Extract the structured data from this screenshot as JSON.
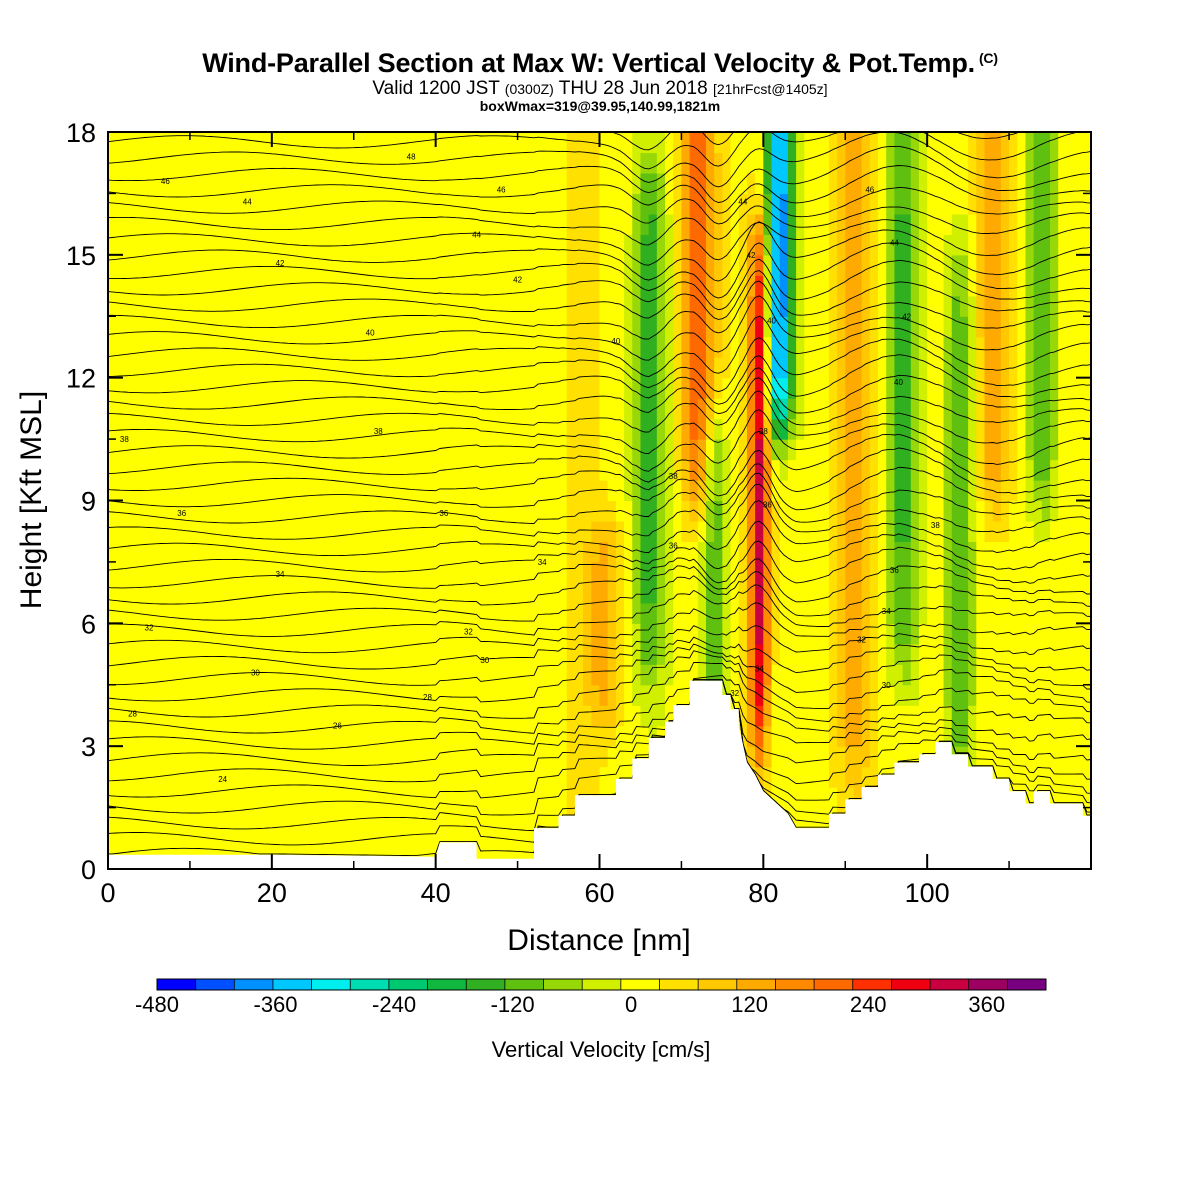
{
  "title": "Wind-Parallel Section at Max W: Vertical Velocity & Pot.Temp.",
  "copyright": "(C)",
  "subtitle_prefix": "Valid 1200 JST",
  "subtitle_utc": "(0300Z)",
  "subtitle_date": "THU 28 Jun 2018",
  "subtitle_fcst": "[21hrFcst@1405z]",
  "subsubtitle": "boxWmax=319@39.95,140.99,1821m",
  "chart_data": {
    "type": "heatmap",
    "title": "Wind-Parallel Section at Max W: Vertical Velocity & Pot.Temp.",
    "xlabel": "Distance [nm]",
    "ylabel": "Height [Kft MSL]",
    "xlim": [
      0,
      120
    ],
    "ylim": [
      0,
      18
    ],
    "x_ticks": [
      "0",
      "20",
      "40",
      "60",
      "80",
      "100"
    ],
    "y_ticks": [
      "0",
      "3",
      "6",
      "9",
      "12",
      "15",
      "18"
    ],
    "grid": false,
    "colorbar": {
      "label": "Vertical Velocity [cm/s]",
      "min": -480,
      "max": 420,
      "step": 40,
      "tick_labels": [
        "-480",
        "-360",
        "-240",
        "-120",
        "0",
        "120",
        "240",
        "360"
      ],
      "colors": [
        "#0000ff",
        "#0050ff",
        "#0090ff",
        "#00c8ff",
        "#00eeee",
        "#00ddb0",
        "#00c870",
        "#10b840",
        "#30b020",
        "#60c010",
        "#98d808",
        "#d0f000",
        "#ffff00",
        "#ffe000",
        "#ffc800",
        "#ffaa00",
        "#ff8a00",
        "#ff6a00",
        "#ff3000",
        "#ee0010",
        "#c80040",
        "#9c0060",
        "#780080"
      ]
    },
    "terrain": [
      [
        0,
        0.35
      ],
      [
        20,
        0.35
      ],
      [
        40,
        0.3
      ],
      [
        40.5,
        0.65
      ],
      [
        45,
        0.65
      ],
      [
        45,
        0.25
      ],
      [
        52,
        0.25
      ],
      [
        52,
        1.0
      ],
      [
        55,
        1.0
      ],
      [
        55,
        1.3
      ],
      [
        57,
        1.3
      ],
      [
        57,
        1.8
      ],
      [
        62,
        1.8
      ],
      [
        62,
        2.2
      ],
      [
        64,
        2.2
      ],
      [
        64,
        2.7
      ],
      [
        66,
        2.7
      ],
      [
        66,
        3.2
      ],
      [
        68,
        3.2
      ],
      [
        68,
        3.6
      ],
      [
        69,
        3.6
      ],
      [
        69,
        4.0
      ],
      [
        71,
        4.0
      ],
      [
        71,
        4.6
      ],
      [
        75,
        4.6
      ],
      [
        75,
        4.25
      ],
      [
        76,
        4.25
      ],
      [
        76,
        3.9
      ],
      [
        77,
        3.9
      ],
      [
        77,
        3.5
      ],
      [
        78,
        2.6
      ],
      [
        79,
        2.3
      ],
      [
        80,
        1.9
      ],
      [
        83,
        1.35
      ],
      [
        84,
        1.0
      ],
      [
        88,
        1.0
      ],
      [
        88,
        1.35
      ],
      [
        90,
        1.35
      ],
      [
        90,
        1.7
      ],
      [
        92,
        1.7
      ],
      [
        92,
        2.0
      ],
      [
        94,
        2.0
      ],
      [
        94,
        2.3
      ],
      [
        96,
        2.3
      ],
      [
        96,
        2.6
      ],
      [
        99,
        2.6
      ],
      [
        99,
        2.8
      ],
      [
        101,
        2.8
      ],
      [
        101,
        3.1
      ],
      [
        103,
        3.1
      ],
      [
        103,
        2.8
      ],
      [
        105,
        2.8
      ],
      [
        105,
        2.5
      ],
      [
        108,
        2.5
      ],
      [
        108,
        2.2
      ],
      [
        110,
        2.2
      ],
      [
        110,
        1.9
      ],
      [
        112,
        1.9
      ],
      [
        112,
        1.6
      ],
      [
        113,
        1.6
      ],
      [
        113,
        1.9
      ],
      [
        115,
        1.9
      ],
      [
        115,
        1.6
      ],
      [
        119,
        1.6
      ],
      [
        119,
        1.3
      ],
      [
        120,
        1.3
      ]
    ],
    "w_features": [
      {
        "x": 79.5,
        "y_from": 4.0,
        "y_to": 14.5,
        "w": 300,
        "halfwidth_nm": 1.2
      },
      {
        "x": 82.0,
        "y_from": 12.0,
        "y_to": 18.0,
        "w": -420,
        "halfwidth_nm": 1.6
      },
      {
        "x": 74.0,
        "y_from": 4.0,
        "y_to": 10.0,
        "w": -160,
        "halfwidth_nm": 1.6
      },
      {
        "x": 66.0,
        "y_from": 6.0,
        "y_to": 16.0,
        "w": -160,
        "halfwidth_nm": 1.8
      },
      {
        "x": 72.0,
        "y_from": 10.0,
        "y_to": 18.0,
        "w": 220,
        "halfwidth_nm": 2.0
      },
      {
        "x": 97.0,
        "y_from": 6.0,
        "y_to": 18.0,
        "w": -160,
        "halfwidth_nm": 2.0
      },
      {
        "x": 104.0,
        "y_from": 3.0,
        "y_to": 14.0,
        "w": -140,
        "halfwidth_nm": 1.8
      },
      {
        "x": 114.0,
        "y_from": 10.0,
        "y_to": 18.0,
        "w": -150,
        "halfwidth_nm": 1.8
      },
      {
        "x": 91.0,
        "y_from": 3.0,
        "y_to": 18.0,
        "w": 130,
        "halfwidth_nm": 2.2
      },
      {
        "x": 108.0,
        "y_from": 10.0,
        "y_to": 18.0,
        "w": 130,
        "halfwidth_nm": 2.0
      },
      {
        "x": 60.5,
        "y_from": 5.0,
        "y_to": 7.0,
        "w": 100,
        "halfwidth_nm": 2.5
      }
    ],
    "isentrope_labels": [
      {
        "x": 37,
        "y": 17.4,
        "text": "48"
      },
      {
        "x": 7,
        "y": 16.8,
        "text": "46"
      },
      {
        "x": 48,
        "y": 16.6,
        "text": "46"
      },
      {
        "x": 17,
        "y": 16.3,
        "text": "44"
      },
      {
        "x": 45,
        "y": 15.5,
        "text": "44"
      },
      {
        "x": 21,
        "y": 14.8,
        "text": "42"
      },
      {
        "x": 50,
        "y": 14.4,
        "text": "42"
      },
      {
        "x": 32,
        "y": 13.1,
        "text": "40"
      },
      {
        "x": 62,
        "y": 12.9,
        "text": "40"
      },
      {
        "x": 2,
        "y": 10.5,
        "text": "38"
      },
      {
        "x": 33,
        "y": 10.7,
        "text": "38"
      },
      {
        "x": 9,
        "y": 8.7,
        "text": "36"
      },
      {
        "x": 41,
        "y": 8.7,
        "text": "36"
      },
      {
        "x": 21,
        "y": 7.2,
        "text": "34"
      },
      {
        "x": 53,
        "y": 7.5,
        "text": "34"
      },
      {
        "x": 5,
        "y": 5.9,
        "text": "32"
      },
      {
        "x": 44,
        "y": 5.8,
        "text": "32"
      },
      {
        "x": 18,
        "y": 4.8,
        "text": "30"
      },
      {
        "x": 46,
        "y": 5.1,
        "text": "30"
      },
      {
        "x": 3,
        "y": 3.8,
        "text": "28"
      },
      {
        "x": 39,
        "y": 4.2,
        "text": "28"
      },
      {
        "x": 28,
        "y": 3.5,
        "text": "26"
      },
      {
        "x": 14,
        "y": 2.2,
        "text": "24"
      },
      {
        "x": 69,
        "y": 9.6,
        "text": "38"
      },
      {
        "x": 69,
        "y": 7.9,
        "text": "36"
      },
      {
        "x": 77.5,
        "y": 16.3,
        "text": "44"
      },
      {
        "x": 78.5,
        "y": 15.0,
        "text": "42"
      },
      {
        "x": 81,
        "y": 13.4,
        "text": "40"
      },
      {
        "x": 80,
        "y": 10.7,
        "text": "38"
      },
      {
        "x": 80.5,
        "y": 8.9,
        "text": "36"
      },
      {
        "x": 79.5,
        "y": 4.9,
        "text": "34"
      },
      {
        "x": 76.5,
        "y": 4.3,
        "text": "32"
      },
      {
        "x": 93,
        "y": 16.6,
        "text": "46"
      },
      {
        "x": 96,
        "y": 15.3,
        "text": "44"
      },
      {
        "x": 97.5,
        "y": 13.5,
        "text": "42"
      },
      {
        "x": 96.5,
        "y": 11.9,
        "text": "40"
      },
      {
        "x": 101,
        "y": 8.4,
        "text": "38"
      },
      {
        "x": 96,
        "y": 7.3,
        "text": "36"
      },
      {
        "x": 95,
        "y": 6.3,
        "text": "34"
      },
      {
        "x": 92,
        "y": 5.6,
        "text": "32"
      },
      {
        "x": 95,
        "y": 4.5,
        "text": "30"
      }
    ]
  }
}
